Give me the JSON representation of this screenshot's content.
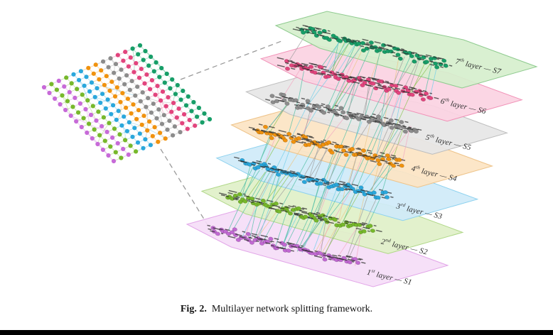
{
  "figure": {
    "caption_label": "Fig. 2.",
    "caption_text": "Multilayer network splitting framework."
  },
  "layers": [
    {
      "num": "7",
      "sup": "th",
      "rest": "layer — S7",
      "set": "S7",
      "plane_fill": "#d6efcd",
      "plane_stroke": "#8fcb8f",
      "node_color": "#179e68"
    },
    {
      "num": "6",
      "sup": "th",
      "rest": "layer — S6",
      "set": "S6",
      "plane_fill": "#fbd3e2",
      "plane_stroke": "#f191b7",
      "node_color": "#e2447d"
    },
    {
      "num": "5",
      "sup": "th",
      "rest": "layer — S5",
      "set": "S5",
      "plane_fill": "#e6e6e6",
      "plane_stroke": "#bdbdbd",
      "node_color": "#8c8c8c"
    },
    {
      "num": "4",
      "sup": "th",
      "rest": "layer — S4",
      "set": "S4",
      "plane_fill": "#fce4c3",
      "plane_stroke": "#eec389",
      "node_color": "#f0920e"
    },
    {
      "num": "3",
      "sup": "rd",
      "rest": "layer — S3",
      "set": "S3",
      "plane_fill": "#cfeaf8",
      "plane_stroke": "#8ed2ef",
      "node_color": "#2aa7dc"
    },
    {
      "num": "2",
      "sup": "nd",
      "rest": "layer — S2",
      "set": "S2",
      "plane_fill": "#e0f0c8",
      "plane_stroke": "#afd787",
      "node_color": "#77b82b"
    },
    {
      "num": "1",
      "sup": "st",
      "rest": "layer — S1",
      "set": "S1",
      "plane_fill": "#f5ddf7",
      "plane_stroke": "#e2a6e8",
      "node_color": "#c169d2"
    }
  ],
  "flat_network": {
    "band_colors": [
      "#179e68",
      "#179e68",
      "#e2447d",
      "#e2447d",
      "#8c8c8c",
      "#8c8c8c",
      "#f0920e",
      "#f0920e",
      "#2aa7dc",
      "#2aa7dc",
      "#77b82b",
      "#c76ad8",
      "#77b82b",
      "#c76ad8"
    ]
  },
  "link_colors": {
    "teal": "#54c0a6",
    "gray": "#9f9f9f",
    "sand": "#ebc88a",
    "pink": "#f2a8c2",
    "green": "#8cc455",
    "cyan": "#74cfe9"
  },
  "connector": {
    "color": "#9a9a9a"
  }
}
